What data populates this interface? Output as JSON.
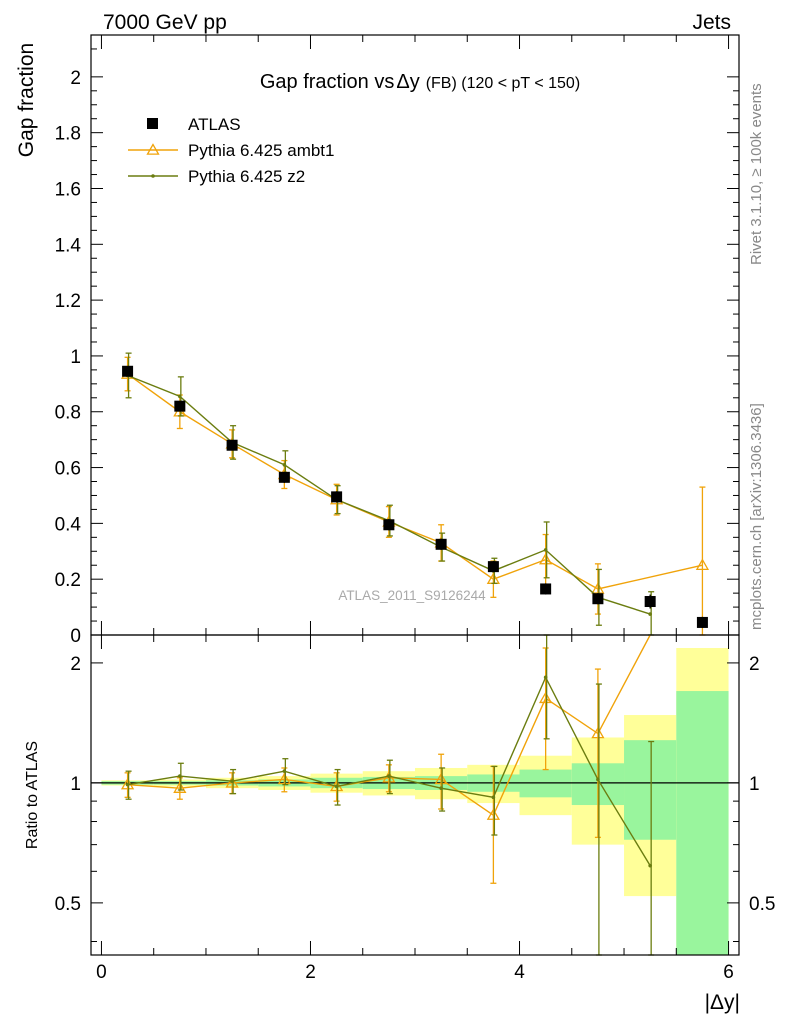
{
  "header": {
    "left": "7000 GeV pp",
    "right": "Jets"
  },
  "side_text": {
    "rivet": "Rivet 3.1.10, ≥ 100k events",
    "mcplots": "mcplots.cern.ch [arXiv:1306.3436]"
  },
  "chart_data": [
    {
      "type": "scatter",
      "title": "Gap fraction vs Δy (FB) (120 < pT < 150)",
      "title_parts": {
        "main": "Gap fraction vs",
        "delta": "Δy",
        "sub": "(FB) (120 < pT < 150)"
      },
      "ylabel": "Gap fraction",
      "xlabel": "|Δy|",
      "watermark": "ATLAS_2011_S9126244",
      "xlim": [
        -0.1,
        6.1
      ],
      "ylim": [
        0,
        2.15
      ],
      "yticks": [
        0,
        0.2,
        0.4,
        0.6,
        0.8,
        1,
        1.2,
        1.4,
        1.6,
        1.8,
        2
      ],
      "ytick_labels": [
        "0",
        "0.2",
        "0.4",
        "0.6",
        "0.8",
        "1",
        "1.2",
        "1.4",
        "1.6",
        "1.8",
        "2"
      ],
      "legend_position": "top-left",
      "series": [
        {
          "name": "ATLAS",
          "style": "square-marker",
          "color": "#000000",
          "x": [
            0.25,
            0.75,
            1.25,
            1.75,
            2.25,
            2.75,
            3.25,
            3.75,
            4.25,
            4.75,
            5.25,
            5.75
          ],
          "y": [
            0.945,
            0.82,
            0.68,
            0.565,
            0.495,
            0.395,
            0.325,
            0.245,
            0.165,
            0.13,
            0.12,
            0.045
          ],
          "yerr": [
            0.015,
            0.015,
            0.015,
            0.02,
            0.02,
            0.02,
            0.02,
            0.02,
            0.02,
            0.02,
            0.025,
            0.02
          ]
        },
        {
          "name": "Pythia 6.425 ambt1",
          "style": "triangle-line",
          "color": "#f0a30a",
          "x": [
            0.25,
            0.75,
            1.25,
            1.75,
            2.25,
            2.75,
            3.25,
            3.75,
            4.25,
            4.75,
            5.75
          ],
          "y": [
            0.935,
            0.8,
            0.685,
            0.575,
            0.485,
            0.405,
            0.33,
            0.2,
            0.27,
            0.165,
            0.25
          ],
          "yerr": [
            0.06,
            0.06,
            0.05,
            0.05,
            0.055,
            0.055,
            0.065,
            0.065,
            0.09,
            0.09,
            0.28
          ]
        },
        {
          "name": "Pythia 6.425 z2",
          "style": "dot-line",
          "color": "#6b7d10",
          "x": [
            0.25,
            0.75,
            1.25,
            1.75,
            2.25,
            2.75,
            3.25,
            3.75,
            4.25,
            4.75,
            5.25
          ],
          "y": [
            0.93,
            0.855,
            0.69,
            0.61,
            0.485,
            0.41,
            0.315,
            0.23,
            0.305,
            0.135,
            0.075
          ],
          "yerr": [
            0.08,
            0.07,
            0.06,
            0.05,
            0.05,
            0.055,
            0.05,
            0.045,
            0.1,
            0.1,
            0.08
          ]
        }
      ]
    },
    {
      "type": "line",
      "ylabel": "Ratio to ATLAS",
      "xlabel": "|Δy|",
      "ylog": true,
      "ylim": [
        0.37,
        2.35
      ],
      "yticks": [
        0.5,
        1,
        2
      ],
      "ytick_labels": [
        "0.5",
        "1",
        "2"
      ],
      "xlim": [
        -0.1,
        6.1
      ],
      "xticks": [
        0,
        2,
        4,
        6
      ],
      "xtick_labels": [
        "0",
        "2",
        "4",
        "6"
      ],
      "bands": {
        "x_edges": [
          0,
          0.5,
          1.0,
          1.5,
          2.0,
          2.5,
          3.0,
          3.5,
          4.0,
          4.5,
          5.0,
          5.5,
          6.0
        ],
        "stat_color": "#99f59d",
        "total_color": "#ffff99",
        "stat_half": [
          0.01,
          0.01,
          0.015,
          0.02,
          0.03,
          0.035,
          0.04,
          0.05,
          0.08,
          0.12,
          0.28,
          0.7
        ],
        "total_half": [
          0.015,
          0.02,
          0.03,
          0.04,
          0.055,
          0.07,
          0.09,
          0.11,
          0.17,
          0.3,
          0.48,
          1.18
        ]
      },
      "series": [
        {
          "name": "Pythia 6.425 ambt1",
          "color": "#f0a30a",
          "x": [
            0.25,
            0.75,
            1.25,
            1.75,
            2.25,
            2.75,
            3.25,
            3.75,
            4.25,
            4.75,
            5.25
          ],
          "y": [
            0.99,
            0.97,
            1.0,
            1.02,
            0.98,
            1.03,
            1.02,
            0.83,
            1.63,
            1.33,
            2.6
          ],
          "yerr": [
            0.07,
            0.06,
            0.06,
            0.07,
            0.08,
            0.08,
            0.16,
            0.27,
            0.55,
            0.6,
            0
          ]
        },
        {
          "name": "Pythia 6.425 z2",
          "color": "#6b7d10",
          "x": [
            0.25,
            0.75,
            1.25,
            1.75,
            2.25,
            2.75,
            3.25,
            3.75,
            4.25,
            4.75,
            5.25
          ],
          "y": [
            0.99,
            1.04,
            1.01,
            1.07,
            0.98,
            1.04,
            0.97,
            0.92,
            1.84,
            1.02,
            0.62
          ],
          "yerr": [
            0.08,
            0.08,
            0.07,
            0.08,
            0.1,
            0.1,
            0.12,
            0.18,
            0.55,
            0.75,
            0.65
          ]
        }
      ]
    }
  ]
}
